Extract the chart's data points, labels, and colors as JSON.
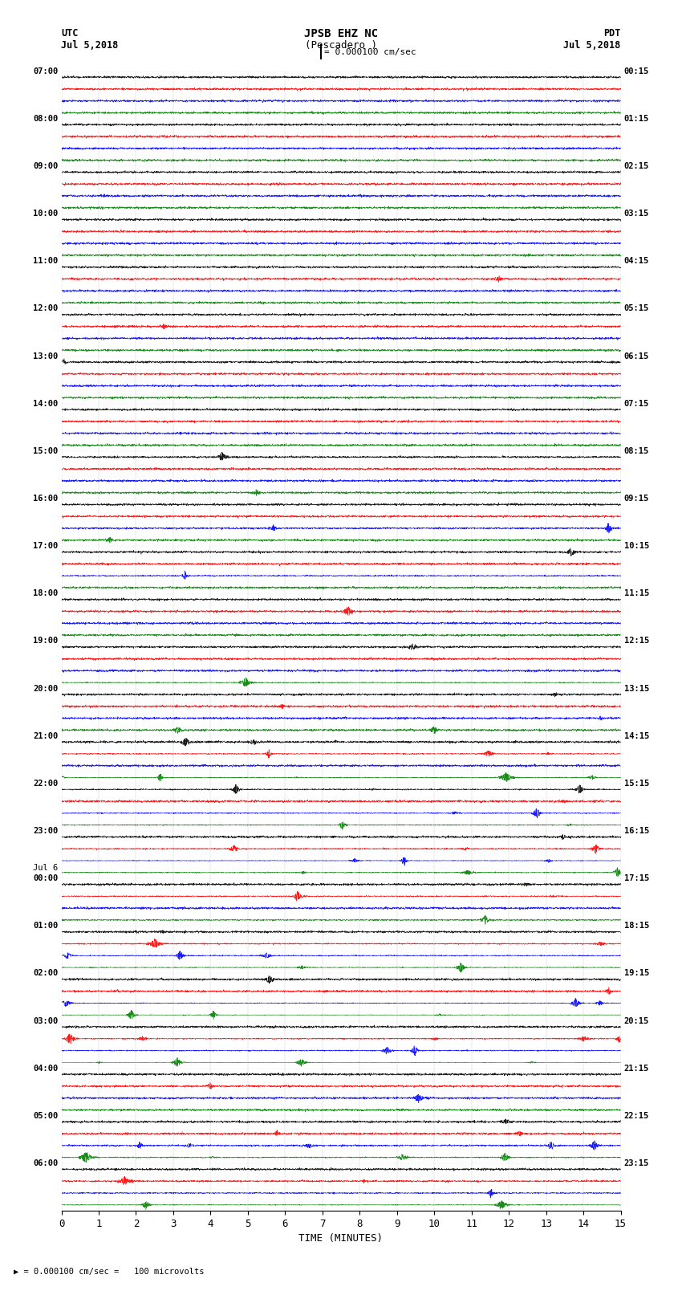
{
  "title_line1": "JPSB EHZ NC",
  "title_line2": "(Pescadero )",
  "scale_label": "= 0.000100 cm/sec",
  "utc_label": "UTC",
  "pdt_label": "PDT",
  "date_left": "Jul 5,2018",
  "date_right": "Jul 5,2018",
  "xlabel": "TIME (MINUTES)",
  "footer_label": "= 0.000100 cm/sec =   100 microvolts",
  "left_times": [
    "07:00",
    "08:00",
    "09:00",
    "10:00",
    "11:00",
    "12:00",
    "13:00",
    "14:00",
    "15:00",
    "16:00",
    "17:00",
    "18:00",
    "19:00",
    "20:00",
    "21:00",
    "22:00",
    "23:00",
    "Jul 6",
    "00:00",
    "01:00",
    "02:00",
    "03:00",
    "04:00",
    "05:00",
    "06:00"
  ],
  "right_times": [
    "00:15",
    "01:15",
    "02:15",
    "03:15",
    "04:15",
    "05:15",
    "06:15",
    "07:15",
    "08:15",
    "09:15",
    "10:15",
    "11:15",
    "12:15",
    "13:15",
    "14:15",
    "15:15",
    "16:15",
    "17:15",
    "18:15",
    "19:15",
    "20:15",
    "21:15",
    "22:15",
    "23:15"
  ],
  "n_rows": 24,
  "traces_per_row": 4,
  "colors": [
    "black",
    "red",
    "blue",
    "green"
  ],
  "bg_color": "#ffffff",
  "xlim": [
    0,
    15
  ],
  "xticks": [
    0,
    1,
    2,
    3,
    4,
    5,
    6,
    7,
    8,
    9,
    10,
    11,
    12,
    13,
    14,
    15
  ],
  "figsize": [
    8.5,
    16.13
  ],
  "dpi": 100,
  "seed": 42
}
